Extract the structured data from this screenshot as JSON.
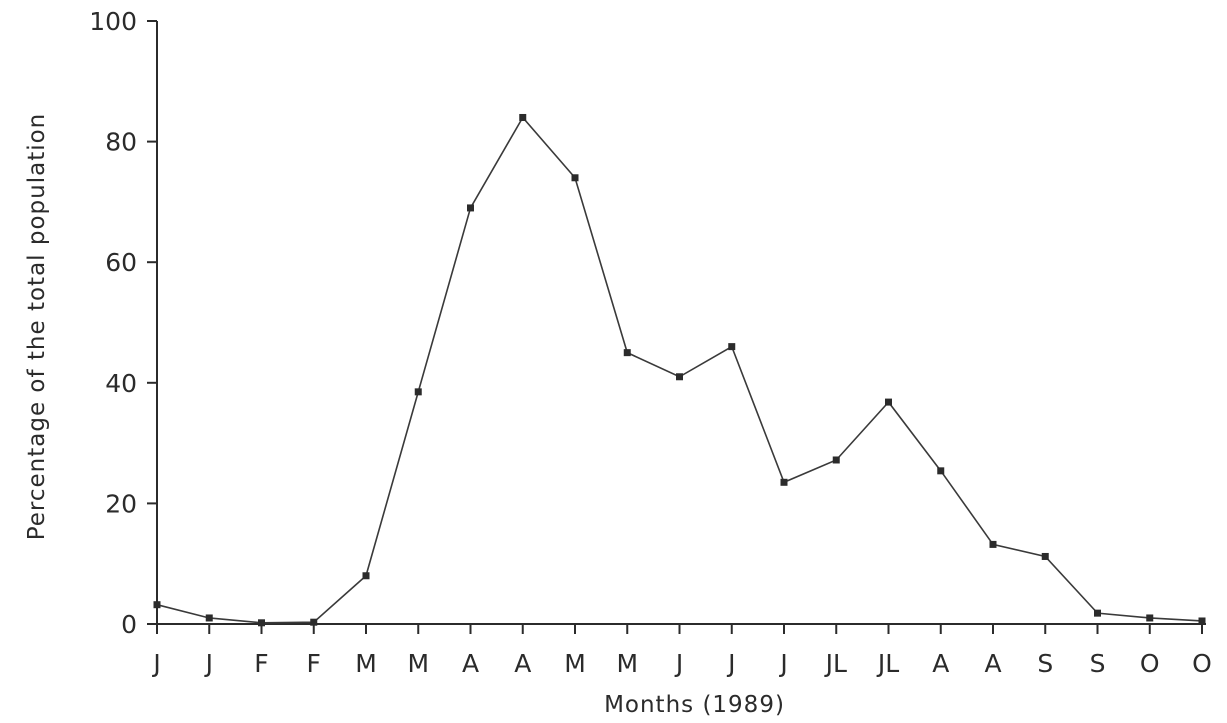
{
  "chart_data": {
    "type": "line",
    "title": "",
    "xlabel": "Months (1989)",
    "ylabel": "Percentage of the total population",
    "ylim": [
      0,
      100
    ],
    "yticks": [
      0,
      20,
      40,
      60,
      80,
      100
    ],
    "grid": false,
    "categories": [
      "J",
      "J",
      "F",
      "F",
      "M",
      "M",
      "A",
      "A",
      "M",
      "M",
      "J",
      "J",
      "J",
      "JL",
      "JL",
      "A",
      "A",
      "S",
      "S",
      "O",
      "O"
    ],
    "series": [
      {
        "values": [
          3.2,
          1.0,
          0.2,
          0.3,
          8.0,
          38.5,
          69.0,
          84.0,
          74.0,
          45.0,
          41.0,
          46.0,
          23.5,
          27.2,
          36.8,
          25.4,
          13.2,
          11.2,
          1.8,
          1.0,
          0.5
        ]
      }
    ]
  }
}
